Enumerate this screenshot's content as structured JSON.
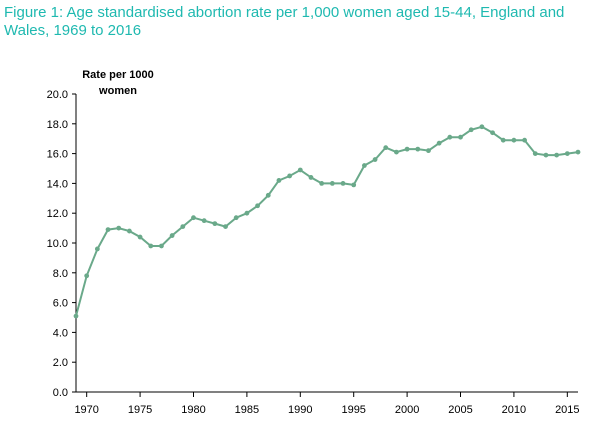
{
  "chart_data": {
    "type": "line",
    "title": "Figure 1: Age standardised abortion rate per 1,000 women aged 15-44, England and Wales, 1969 to 2016",
    "ylabel": "Rate per 1000 women",
    "ylabel_lines": [
      "Rate per 1000",
      "women"
    ],
    "xlabel": "",
    "ylim": [
      0,
      20
    ],
    "xlim": [
      1969,
      2016
    ],
    "y_ticks": [
      "0.0",
      "2.0",
      "4.0",
      "6.0",
      "8.0",
      "10.0",
      "12.0",
      "14.0",
      "16.0",
      "18.0",
      "20.0"
    ],
    "x_ticks": [
      1970,
      1975,
      1980,
      1985,
      1990,
      1995,
      2000,
      2005,
      2010,
      2015
    ],
    "grid": false,
    "color": "#6aa98a",
    "series": [
      {
        "x": [
          1969,
          1970,
          1971,
          1972,
          1973,
          1974,
          1975,
          1976,
          1977,
          1978,
          1979,
          1980,
          1981,
          1982,
          1983,
          1984,
          1985,
          1986,
          1987,
          1988,
          1989,
          1990,
          1991,
          1992,
          1993,
          1994,
          1995,
          1996,
          1997,
          1998,
          1999,
          2000,
          2001,
          2002,
          2003,
          2004,
          2005,
          2006,
          2007,
          2008,
          2009,
          2010,
          2011,
          2012,
          2013,
          2014,
          2015,
          2016
        ],
        "values": [
          5.1,
          7.8,
          9.6,
          10.9,
          11.0,
          10.8,
          10.4,
          9.8,
          9.8,
          10.5,
          11.1,
          11.7,
          11.5,
          11.3,
          11.1,
          11.7,
          12.0,
          12.5,
          13.2,
          14.2,
          14.5,
          14.9,
          14.4,
          14.0,
          14.0,
          14.0,
          13.9,
          15.2,
          15.6,
          16.4,
          16.1,
          16.3,
          16.3,
          16.2,
          16.7,
          17.1,
          17.1,
          17.6,
          17.8,
          17.4,
          16.9,
          16.9,
          16.9,
          16.0,
          15.9,
          15.9,
          16.0,
          16.1
        ]
      }
    ]
  }
}
